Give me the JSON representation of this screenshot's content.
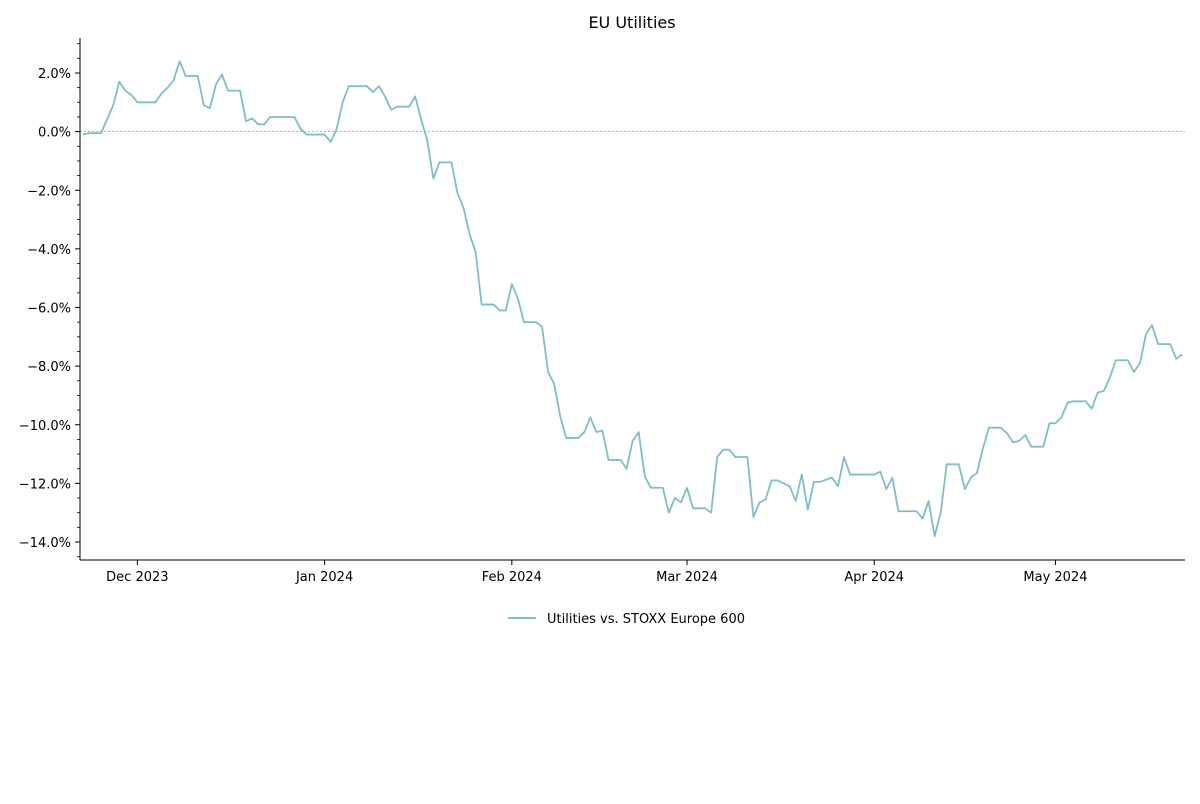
{
  "chart_data": {
    "type": "line",
    "title": "EU Utilities",
    "xlabel": "",
    "ylabel": "",
    "x_tick_labels": [
      "Dec 2023",
      "Jan 2024",
      "Feb 2024",
      "Mar 2024",
      "Apr 2024",
      "May 2024"
    ],
    "x_ticks": [
      "2023-12-01",
      "2024-01-01",
      "2024-02-01",
      "2024-03-01",
      "2024-04-01",
      "2024-05-01"
    ],
    "xlim": [
      "2023-11-22",
      "2024-05-22"
    ],
    "y_ticks": [
      2.0,
      0.0,
      -2.0,
      -4.0,
      -6.0,
      -8.0,
      -10.0,
      -12.0,
      -14.0
    ],
    "y_tick_labels": [
      "2.0%",
      "0.0%",
      "−2.0%",
      "−4.0%",
      "−6.0%",
      "−8.0%",
      "−10.0%",
      "−12.0%",
      "−14.0%"
    ],
    "ylim": [
      -14.6,
      3.2
    ],
    "reference_line": 0.0,
    "grid": false,
    "legend_position": "bottom-center",
    "series": [
      {
        "name": "Utilities vs. STOXX Europe 600",
        "color": "#7ebfc5",
        "points": [
          [
            "2023-11-22",
            -0.1
          ],
          [
            "2023-11-23",
            -0.05
          ],
          [
            "2023-11-24",
            -0.05
          ],
          [
            "2023-11-25",
            -0.05
          ],
          [
            "2023-11-27",
            0.9
          ],
          [
            "2023-11-28",
            1.7
          ],
          [
            "2023-11-29",
            1.4
          ],
          [
            "2023-11-30",
            1.25
          ],
          [
            "2023-12-01",
            1.0
          ],
          [
            "2023-12-02",
            1.0
          ],
          [
            "2023-12-04",
            1.0
          ],
          [
            "2023-12-05",
            1.3
          ],
          [
            "2023-12-06",
            1.5
          ],
          [
            "2023-12-07",
            1.75
          ],
          [
            "2023-12-08",
            2.4
          ],
          [
            "2023-12-09",
            1.9
          ],
          [
            "2023-12-11",
            1.9
          ],
          [
            "2023-12-12",
            0.9
          ],
          [
            "2023-12-13",
            0.8
          ],
          [
            "2023-12-14",
            1.6
          ],
          [
            "2023-12-15",
            1.95
          ],
          [
            "2023-12-16",
            1.4
          ],
          [
            "2023-12-18",
            1.4
          ],
          [
            "2023-12-19",
            0.35
          ],
          [
            "2023-12-20",
            0.45
          ],
          [
            "2023-12-21",
            0.25
          ],
          [
            "2023-12-22",
            0.25
          ],
          [
            "2023-12-23",
            0.5
          ],
          [
            "2023-12-27",
            0.5
          ],
          [
            "2023-12-28",
            0.1
          ],
          [
            "2023-12-29",
            -0.1
          ],
          [
            "2023-12-30",
            -0.1
          ],
          [
            "2024-01-01",
            -0.1
          ],
          [
            "2024-01-02",
            -0.35
          ],
          [
            "2024-01-03",
            0.1
          ],
          [
            "2024-01-04",
            1.0
          ],
          [
            "2024-01-05",
            1.55
          ],
          [
            "2024-01-06",
            1.55
          ],
          [
            "2024-01-08",
            1.55
          ],
          [
            "2024-01-09",
            1.35
          ],
          [
            "2024-01-10",
            1.55
          ],
          [
            "2024-01-11",
            1.2
          ],
          [
            "2024-01-12",
            0.75
          ],
          [
            "2024-01-13",
            0.85
          ],
          [
            "2024-01-15",
            0.85
          ],
          [
            "2024-01-16",
            1.2
          ],
          [
            "2024-01-17",
            0.4
          ],
          [
            "2024-01-18",
            -0.3
          ],
          [
            "2024-01-19",
            -1.6
          ],
          [
            "2024-01-20",
            -1.05
          ],
          [
            "2024-01-22",
            -1.05
          ],
          [
            "2024-01-23",
            -2.1
          ],
          [
            "2024-01-24",
            -2.6
          ],
          [
            "2024-01-25",
            -3.5
          ],
          [
            "2024-01-26",
            -4.1
          ],
          [
            "2024-01-27",
            -5.9
          ],
          [
            "2024-01-29",
            -5.9
          ],
          [
            "2024-01-30",
            -6.1
          ],
          [
            "2024-01-31",
            -6.1
          ],
          [
            "2024-02-01",
            -5.2
          ],
          [
            "2024-02-02",
            -5.7
          ],
          [
            "2024-02-03",
            -6.5
          ],
          [
            "2024-02-05",
            -6.5
          ],
          [
            "2024-02-06",
            -6.65
          ],
          [
            "2024-02-07",
            -8.2
          ],
          [
            "2024-02-08",
            -8.6
          ],
          [
            "2024-02-09",
            -9.7
          ],
          [
            "2024-02-10",
            -10.45
          ],
          [
            "2024-02-12",
            -10.45
          ],
          [
            "2024-02-13",
            -10.25
          ],
          [
            "2024-02-14",
            -9.75
          ],
          [
            "2024-02-15",
            -10.25
          ],
          [
            "2024-02-16",
            -10.2
          ],
          [
            "2024-02-17",
            -11.2
          ],
          [
            "2024-02-19",
            -11.2
          ],
          [
            "2024-02-20",
            -11.5
          ],
          [
            "2024-02-21",
            -10.55
          ],
          [
            "2024-02-22",
            -10.25
          ],
          [
            "2024-02-23",
            -11.75
          ],
          [
            "2024-02-24",
            -12.15
          ],
          [
            "2024-02-26",
            -12.15
          ],
          [
            "2024-02-27",
            -13.0
          ],
          [
            "2024-02-28",
            -12.5
          ],
          [
            "2024-02-29",
            -12.65
          ],
          [
            "2024-03-01",
            -12.15
          ],
          [
            "2024-03-02",
            -12.85
          ],
          [
            "2024-03-04",
            -12.85
          ],
          [
            "2024-03-05",
            -13.0
          ],
          [
            "2024-03-06",
            -11.1
          ],
          [
            "2024-03-07",
            -10.85
          ],
          [
            "2024-03-08",
            -10.85
          ],
          [
            "2024-03-09",
            -11.1
          ],
          [
            "2024-03-11",
            -11.1
          ],
          [
            "2024-03-12",
            -13.15
          ],
          [
            "2024-03-13",
            -12.65
          ],
          [
            "2024-03-14",
            -12.55
          ],
          [
            "2024-03-15",
            -11.9
          ],
          [
            "2024-03-16",
            -11.9
          ],
          [
            "2024-03-18",
            -12.1
          ],
          [
            "2024-03-19",
            -12.6
          ],
          [
            "2024-03-20",
            -11.7
          ],
          [
            "2024-03-21",
            -12.9
          ],
          [
            "2024-03-22",
            -11.95
          ],
          [
            "2024-03-23",
            -11.95
          ],
          [
            "2024-03-25",
            -11.8
          ],
          [
            "2024-03-26",
            -12.1
          ],
          [
            "2024-03-27",
            -11.1
          ],
          [
            "2024-03-28",
            -11.7
          ],
          [
            "2024-03-29",
            -11.7
          ],
          [
            "2024-03-30",
            -11.7
          ],
          [
            "2024-04-01",
            -11.7
          ],
          [
            "2024-04-02",
            -11.6
          ],
          [
            "2024-04-03",
            -12.2
          ],
          [
            "2024-04-04",
            -11.8
          ],
          [
            "2024-04-05",
            -12.95
          ],
          [
            "2024-04-06",
            -12.95
          ],
          [
            "2024-04-08",
            -12.95
          ],
          [
            "2024-04-09",
            -13.2
          ],
          [
            "2024-04-10",
            -12.6
          ],
          [
            "2024-04-11",
            -13.8
          ],
          [
            "2024-04-12",
            -13.0
          ],
          [
            "2024-04-13",
            -11.35
          ],
          [
            "2024-04-15",
            -11.35
          ],
          [
            "2024-04-16",
            -12.2
          ],
          [
            "2024-04-17",
            -11.8
          ],
          [
            "2024-04-18",
            -11.65
          ],
          [
            "2024-04-19",
            -10.8
          ],
          [
            "2024-04-20",
            -10.1
          ],
          [
            "2024-04-22",
            -10.1
          ],
          [
            "2024-04-23",
            -10.3
          ],
          [
            "2024-04-24",
            -10.6
          ],
          [
            "2024-04-25",
            -10.55
          ],
          [
            "2024-04-26",
            -10.35
          ],
          [
            "2024-04-27",
            -10.75
          ],
          [
            "2024-04-29",
            -10.75
          ],
          [
            "2024-04-30",
            -9.95
          ],
          [
            "2024-05-01",
            -9.95
          ],
          [
            "2024-05-02",
            -9.75
          ],
          [
            "2024-05-03",
            -9.25
          ],
          [
            "2024-05-04",
            -9.2
          ],
          [
            "2024-05-06",
            -9.2
          ],
          [
            "2024-05-07",
            -9.45
          ],
          [
            "2024-05-08",
            -8.9
          ],
          [
            "2024-05-09",
            -8.85
          ],
          [
            "2024-05-10",
            -8.4
          ],
          [
            "2024-05-11",
            -7.8
          ],
          [
            "2024-05-13",
            -7.8
          ],
          [
            "2024-05-14",
            -8.2
          ],
          [
            "2024-05-15",
            -7.9
          ],
          [
            "2024-05-16",
            -6.9
          ],
          [
            "2024-05-17",
            -6.6
          ],
          [
            "2024-05-18",
            -7.25
          ],
          [
            "2024-05-20",
            -7.25
          ],
          [
            "2024-05-21",
            -7.75
          ],
          [
            "2024-05-22",
            -7.6
          ]
        ]
      }
    ]
  }
}
